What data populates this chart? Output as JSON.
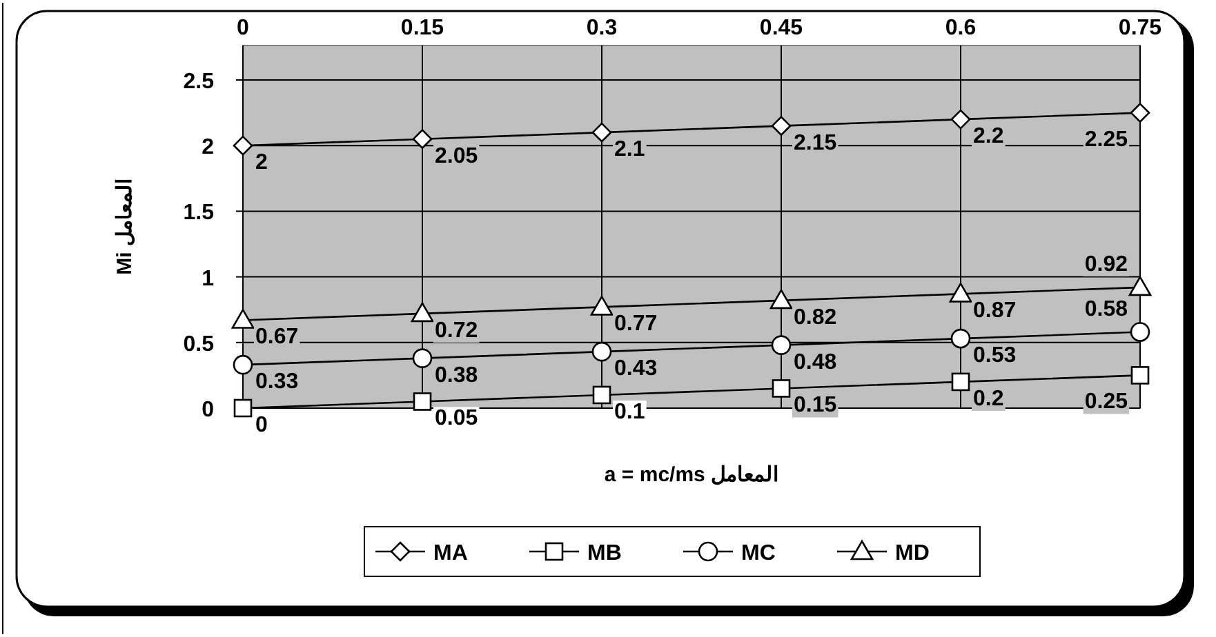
{
  "chart_data": {
    "type": "line",
    "xlabel": "a = mc/ms المعامل",
    "ylabel": "Mi المعامل",
    "x": [
      0,
      0.15,
      0.3,
      0.45,
      0.6,
      0.75
    ],
    "series": [
      {
        "name": "MA",
        "color": "#000000",
        "marker": "diamond",
        "values": [
          2,
          2.05,
          2.1,
          2.15,
          2.2,
          2.25
        ]
      },
      {
        "name": "MB",
        "color": "#000000",
        "marker": "square",
        "values": [
          0,
          0.05,
          0.1,
          0.15,
          0.2,
          0.25
        ]
      },
      {
        "name": "MC",
        "color": "#000000",
        "marker": "circle",
        "values": [
          0.33,
          0.38,
          0.43,
          0.48,
          0.53,
          0.58
        ]
      },
      {
        "name": "MD",
        "color": "#000000",
        "marker": "triangle",
        "values": [
          0.67,
          0.72,
          0.77,
          0.82,
          0.87,
          0.92
        ]
      }
    ],
    "xlim": [
      0,
      0.75
    ],
    "xticks": [
      0,
      0.15,
      0.3,
      0.45,
      0.6,
      0.75
    ],
    "ylim": [
      0,
      2.5
    ],
    "yticks": [
      0,
      0.5,
      1,
      1.5,
      2,
      2.5
    ],
    "grid": true,
    "legend": "bottom",
    "data_labels": true
  }
}
